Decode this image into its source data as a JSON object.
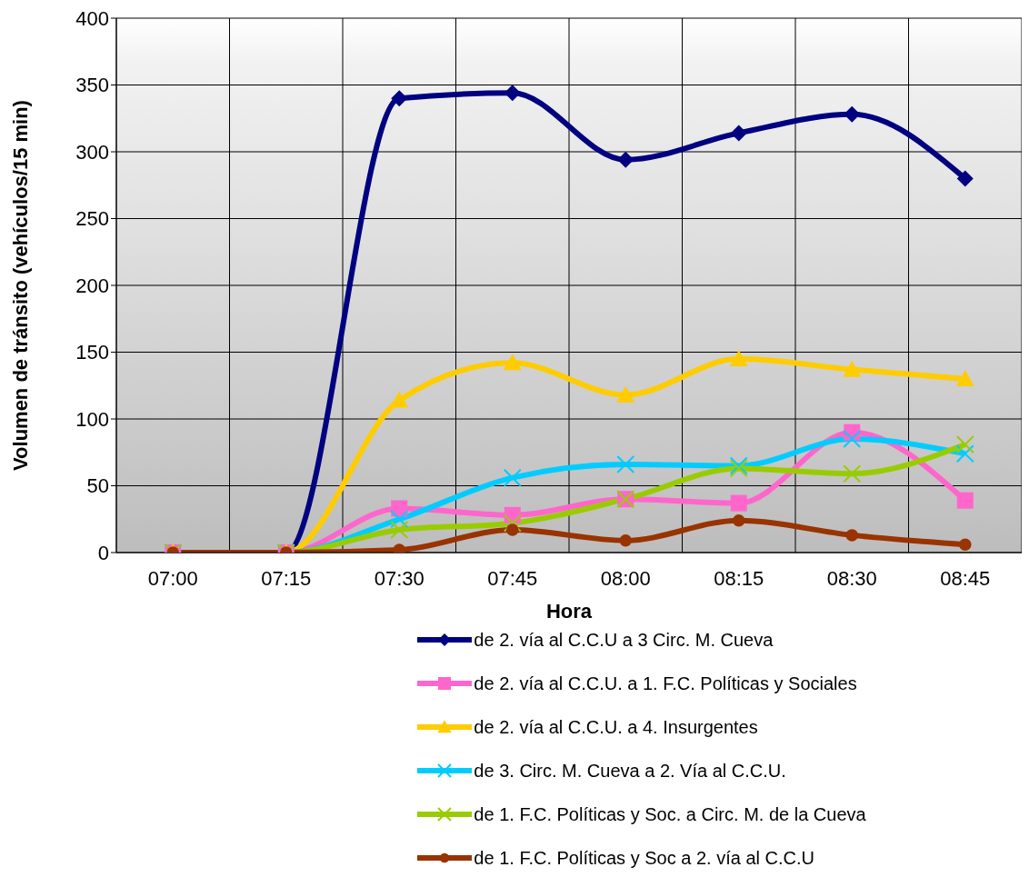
{
  "chart_data": {
    "type": "line",
    "xlabel": "Hora",
    "ylabel": "Volumen de tránsito (vehículos/15 min)",
    "categories": [
      "07:00",
      "07:15",
      "07:30",
      "07:45",
      "08:00",
      "08:15",
      "08:30",
      "08:45"
    ],
    "ylim": [
      0,
      400
    ],
    "yticks": [
      0,
      50,
      100,
      150,
      200,
      250,
      300,
      350,
      400
    ],
    "grid": true,
    "legend": "bottom",
    "series": [
      {
        "name": "de 2. vía al C.C.U a 3 Circ. M. Cueva",
        "color": "#000080",
        "marker": "diamond",
        "values": [
          0,
          0,
          340,
          344,
          294,
          314,
          328,
          280
        ]
      },
      {
        "name": "de 2. vía al C.C.U. a 1. F.C. Políticas y Sociales",
        "color": "#ff66cc",
        "marker": "square",
        "values": [
          0,
          0,
          33,
          28,
          40,
          37,
          90,
          39
        ]
      },
      {
        "name": "de 2. vía al C.C.U. a 4. Insurgentes",
        "color": "#ffcc00",
        "marker": "triangle",
        "values": [
          0,
          0,
          114,
          142,
          118,
          145,
          137,
          130
        ]
      },
      {
        "name": "de 3. Circ. M. Cueva a 2. Vía al C.C.U.",
        "color": "#00ccff",
        "marker": "cross",
        "values": [
          0,
          0,
          25,
          56,
          66,
          65,
          85,
          74
        ]
      },
      {
        "name": "de 1. F.C. Políticas y Soc. a Circ. M. de la Cueva",
        "color": "#99cc00",
        "marker": "cross",
        "values": [
          0,
          0,
          17,
          22,
          40,
          63,
          59,
          81
        ]
      },
      {
        "name": "de 1. F.C. Políticas y Soc a 2. vía al C.C.U",
        "color": "#993300",
        "marker": "circle",
        "values": [
          0,
          0,
          2,
          17,
          9,
          24,
          13,
          6
        ]
      }
    ]
  }
}
